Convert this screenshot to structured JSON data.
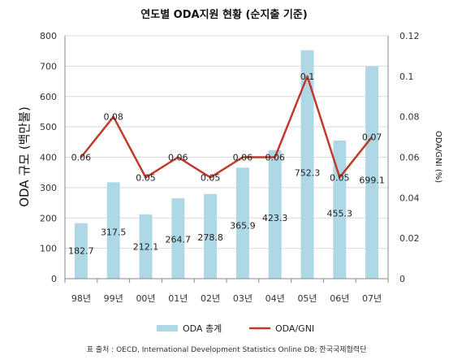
{
  "chart_data": {
    "type": "bar",
    "title": "연도별 ODA지원 현황 (순지출 기준)",
    "categories": [
      "98년",
      "99년",
      "00년",
      "01년",
      "02년",
      "03년",
      "04년",
      "05년",
      "06년",
      "07년"
    ],
    "ylabel": "ODA 규모 (백만불)",
    "ylabel_right": "ODA/GNI (%)",
    "ylim": [
      0,
      800
    ],
    "yticks": [
      "0",
      "100",
      "200",
      "300",
      "400",
      "500",
      "600",
      "700",
      "800"
    ],
    "ylim_right": [
      0,
      0.12
    ],
    "yticks_right": [
      "0",
      "0.02",
      "0.04",
      "0.06",
      "0.08",
      "0.1",
      "0.12"
    ],
    "grid": true,
    "legend_position": "bottom",
    "series": [
      {
        "name": "ODA 총계",
        "type": "bar",
        "axis": "left",
        "color": "#aed8e6",
        "values": [
          182.7,
          317.5,
          212.1,
          264.7,
          278.8,
          365.9,
          423.3,
          752.3,
          455.3,
          699.1
        ],
        "labels": [
          "182.7",
          "317.5",
          "212.1",
          "264.7",
          "278.8",
          "365.9",
          "423.3",
          "752.3",
          "455.3",
          "699.1"
        ]
      },
      {
        "name": "ODA/GNI",
        "type": "line",
        "axis": "right",
        "color": "#c0392b",
        "values": [
          0.06,
          0.08,
          0.05,
          0.06,
          0.05,
          0.06,
          0.06,
          0.1,
          0.05,
          0.07
        ],
        "labels": [
          "0.06",
          "0.08",
          "0.05",
          "0.06",
          "0.05",
          "0.06",
          "0.06",
          "0.1",
          "0.05",
          "0.07"
        ]
      }
    ],
    "source": "표 출처 : OECD, International Development Statistics Online DB; 한국국제협력단"
  }
}
